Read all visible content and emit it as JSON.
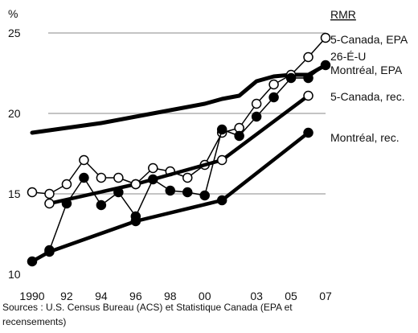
{
  "chart_data": {
    "type": "line",
    "ylabel": "%",
    "ylim": [
      10,
      25
    ],
    "y_ticks": [
      "10",
      "15",
      "20",
      "25"
    ],
    "x_ticks": [
      {
        "value": 1990,
        "label": "1990"
      },
      {
        "value": 1992,
        "label": "92"
      },
      {
        "value": 1994,
        "label": "94"
      },
      {
        "value": 1996,
        "label": "96"
      },
      {
        "value": 1998,
        "label": "98"
      },
      {
        "value": 2000,
        "label": "00"
      },
      {
        "value": 2003,
        "label": "03"
      },
      {
        "value": 2005,
        "label": "05"
      },
      {
        "value": 2007,
        "label": "07"
      }
    ],
    "xlim": [
      1990,
      2007
    ],
    "grid": "horizontal",
    "legend_title": "RMR",
    "sources": [
      "Sources : U.S. Census Bureau (ACS) et Statistique Canada (EPA et",
      "recensements)"
    ],
    "series": [
      {
        "name": "26-É-U",
        "marker": "none",
        "points": [
          [
            1990,
            18.8
          ],
          [
            1992,
            19.1
          ],
          [
            1994,
            19.4
          ],
          [
            1996,
            19.8
          ],
          [
            1998,
            20.2
          ],
          [
            2000,
            20.6
          ],
          [
            2001,
            20.9
          ],
          [
            2002,
            21.1
          ],
          [
            2003,
            22.0
          ],
          [
            2004,
            22.3
          ],
          [
            2005,
            22.4
          ],
          [
            2006,
            22.4
          ],
          [
            2007,
            23.0
          ]
        ]
      },
      {
        "name": "5-Canada, EPA",
        "marker": "open",
        "points": [
          [
            1990,
            15.1
          ],
          [
            1991,
            15.0
          ],
          [
            1992,
            15.6
          ],
          [
            1993,
            17.1
          ],
          [
            1994,
            16.0
          ],
          [
            1995,
            16.0
          ],
          [
            1996,
            15.6
          ],
          [
            1997,
            16.6
          ],
          [
            1998,
            16.4
          ],
          [
            1999,
            16.0
          ],
          [
            2000,
            16.8
          ],
          [
            2001,
            18.8
          ],
          [
            2002,
            19.1
          ],
          [
            2003,
            20.6
          ],
          [
            2004,
            21.8
          ],
          [
            2005,
            22.4
          ],
          [
            2006,
            23.5
          ],
          [
            2007,
            24.7
          ]
        ]
      },
      {
        "name": "Montréal, EPA",
        "marker": "filled",
        "points": [
          [
            1991,
            11.5
          ],
          [
            1992,
            14.4
          ],
          [
            1993,
            16.0
          ],
          [
            1994,
            14.3
          ],
          [
            1995,
            15.1
          ],
          [
            1996,
            13.6
          ],
          [
            1997,
            15.9
          ],
          [
            1998,
            15.2
          ],
          [
            1999,
            15.1
          ],
          [
            2000,
            14.9
          ],
          [
            2001,
            19.0
          ],
          [
            2002,
            18.6
          ],
          [
            2003,
            19.8
          ],
          [
            2004,
            21.0
          ],
          [
            2005,
            22.2
          ],
          [
            2006,
            22.2
          ],
          [
            2007,
            23.0
          ]
        ]
      },
      {
        "name": "5-Canada, rec.",
        "marker": "open",
        "points": [
          [
            1991,
            14.4
          ],
          [
            1996,
            15.6
          ],
          [
            2001,
            17.1
          ],
          [
            2006,
            21.1
          ]
        ]
      },
      {
        "name": "Montréal, rec.",
        "marker": "filled",
        "points": [
          [
            1990,
            10.8
          ],
          [
            1991,
            11.4
          ],
          [
            1996,
            13.3
          ],
          [
            2001,
            14.6
          ],
          [
            2006,
            18.8
          ]
        ]
      }
    ]
  }
}
